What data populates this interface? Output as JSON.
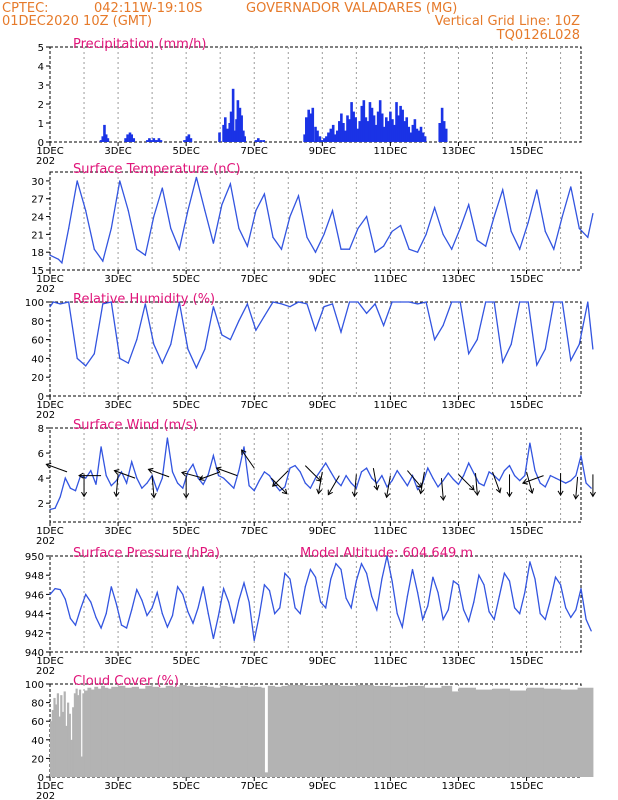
{
  "header": {
    "line1_left": "CPTEC:",
    "line1_coords": "042:11W-19:10S",
    "line1_station": "GOVERNADOR VALADARES (MG)",
    "line2_left": "01DEC2020 10Z (GMT)",
    "line2_right": "Vertical Grid Line: 10Z",
    "line3_right": "TQ0126L028",
    "colors": {
      "header": "#e67a2a",
      "title": "#e0157a",
      "line": "#3355e0",
      "bars": "#1a33e6",
      "cloud": "#b3b3b3"
    }
  },
  "x_axis": {
    "day_labels": [
      "1DEC",
      "3DEC",
      "5DEC",
      "7DEC",
      "9DEC",
      "11DEC",
      "13DEC",
      "15DEC"
    ],
    "year_stub": "202"
  },
  "chart_data": [
    {
      "type": "bar",
      "title": "Precipitation (mm/h)",
      "ylim": [
        0,
        5
      ],
      "yticks": [
        "0",
        "1",
        "2",
        "3",
        "4",
        "5"
      ],
      "x_unit": "days since 01DEC 10Z",
      "x": [
        1.5,
        1.55,
        1.6,
        1.65,
        1.7,
        2.22,
        2.28,
        2.35,
        2.4,
        2.46,
        2.86,
        2.92,
        2.98,
        3.05,
        3.09,
        3.15,
        3.2,
        3.26,
        3.95,
        4.02,
        4.08,
        4.14,
        4.98,
        5.1,
        5.15,
        5.22,
        5.28,
        5.32,
        5.38,
        5.43,
        5.48,
        5.52,
        5.58,
        5.63,
        5.68,
        5.72,
        6.05,
        6.12,
        6.2,
        6.28,
        7.48,
        7.53,
        7.6,
        7.66,
        7.72,
        7.8,
        7.86,
        7.93,
        8.0,
        8.06,
        8.12,
        8.18,
        8.25,
        8.32,
        8.38,
        8.44,
        8.5,
        8.56,
        8.62,
        8.68,
        8.74,
        8.8,
        8.86,
        8.92,
        8.98,
        9.04,
        9.1,
        9.16,
        9.22,
        9.28,
        9.34,
        9.4,
        9.46,
        9.52,
        9.58,
        9.64,
        9.7,
        9.76,
        9.82,
        9.88,
        9.94,
        10.0,
        10.06,
        10.12,
        10.18,
        10.24,
        10.3,
        10.36,
        10.42,
        10.48,
        10.54,
        10.6,
        10.66,
        10.72,
        10.78,
        10.84,
        10.9,
        10.96,
        11.02,
        11.45,
        11.52,
        11.58,
        11.64
      ],
      "values": [
        0.1,
        0.3,
        0.9,
        0.4,
        0.2,
        0.2,
        0.4,
        0.5,
        0.4,
        0.2,
        0.1,
        0.2,
        0.1,
        0.2,
        0.1,
        0.1,
        0.2,
        0.1,
        0.1,
        0.3,
        0.4,
        0.2,
        0.5,
        0.9,
        1.3,
        0.7,
        1.0,
        1.6,
        2.8,
        0.6,
        1.2,
        2.2,
        1.8,
        1.4,
        0.6,
        0.3,
        0.1,
        0.2,
        0.1,
        0.1,
        0.4,
        1.3,
        1.7,
        1.5,
        1.8,
        0.8,
        0.6,
        0.3,
        0.1,
        0.2,
        0.3,
        0.5,
        0.7,
        0.9,
        0.4,
        0.6,
        1.1,
        1.5,
        1.0,
        0.6,
        1.4,
        1.2,
        2.1,
        1.6,
        1.3,
        0.7,
        1.1,
        1.9,
        2.2,
        1.3,
        1.1,
        2.1,
        1.8,
        1.4,
        0.9,
        1.6,
        2.2,
        1.5,
        0.8,
        1.3,
        1.1,
        1.6,
        1.2,
        0.9,
        2.1,
        1.4,
        1.9,
        1.7,
        1.1,
        1.3,
        0.8,
        0.5,
        0.9,
        1.2,
        0.7,
        0.6,
        0.8,
        0.5,
        0.3,
        1.0,
        1.8,
        1.1,
        0.7
      ]
    },
    {
      "type": "line",
      "title": "Surface Temperature (nC)",
      "ylim": [
        15,
        31.5
      ],
      "yticks": [
        "15",
        "18",
        "21",
        "24",
        "27",
        "30"
      ],
      "x_unit": "days since 01DEC 10Z",
      "x": [
        0.0,
        0.25,
        0.35,
        0.55,
        0.8,
        1.05,
        1.3,
        1.55,
        1.8,
        2.05,
        2.3,
        2.55,
        2.8,
        3.05,
        3.3,
        3.55,
        3.8,
        4.05,
        4.3,
        4.55,
        4.8,
        5.05,
        5.3,
        5.55,
        5.8,
        6.05,
        6.3,
        6.55,
        6.8,
        7.05,
        7.3,
        7.55,
        7.8,
        8.05,
        8.3,
        8.55,
        8.8,
        9.05,
        9.3,
        9.55,
        9.8,
        10.05,
        10.3,
        10.55,
        10.8,
        11.05,
        11.3,
        11.55,
        11.8,
        12.05,
        12.3,
        12.55,
        12.8,
        13.05,
        13.3,
        13.55,
        13.8,
        14.05,
        14.3,
        14.55,
        14.8,
        15.05,
        15.3,
        15.55,
        15.8,
        15.95
      ],
      "values": [
        17.5,
        16.8,
        16.2,
        22.0,
        30.0,
        25.0,
        18.5,
        16.5,
        22.0,
        30.0,
        25.0,
        18.5,
        17.5,
        24.0,
        28.8,
        22.0,
        18.5,
        25.0,
        30.6,
        25.0,
        19.5,
        26.0,
        29.5,
        22.0,
        19.0,
        25.0,
        27.8,
        20.5,
        18.5,
        24.0,
        27.5,
        20.5,
        18.0,
        21.0,
        25.0,
        18.5,
        18.5,
        22.0,
        24.0,
        18.0,
        19.0,
        21.5,
        22.5,
        18.5,
        18.0,
        21.0,
        25.5,
        21.0,
        18.5,
        22.0,
        26.0,
        20.0,
        19.0,
        24.0,
        28.5,
        21.5,
        18.5,
        23.0,
        28.5,
        21.5,
        18.5,
        24.0,
        29.0,
        22.0,
        20.5,
        24.5
      ]
    },
    {
      "type": "line",
      "title": "Relative Humidity (%)",
      "ylim": [
        0,
        100
      ],
      "yticks": [
        "0",
        "20",
        "40",
        "60",
        "80",
        "100"
      ],
      "x_unit": "days since 01DEC 10Z",
      "x": [
        0.0,
        0.1,
        0.3,
        0.55,
        0.8,
        1.05,
        1.3,
        1.55,
        1.8,
        2.05,
        2.3,
        2.55,
        2.8,
        3.05,
        3.3,
        3.55,
        3.8,
        4.05,
        4.3,
        4.55,
        4.8,
        5.05,
        5.3,
        5.55,
        5.8,
        6.05,
        6.3,
        6.55,
        6.8,
        7.05,
        7.3,
        7.55,
        7.8,
        8.05,
        8.3,
        8.55,
        8.8,
        9.05,
        9.3,
        9.55,
        9.8,
        10.05,
        10.3,
        10.55,
        10.8,
        11.05,
        11.3,
        11.55,
        11.8,
        12.05,
        12.3,
        12.55,
        12.8,
        13.05,
        13.3,
        13.55,
        13.8,
        14.05,
        14.3,
        14.55,
        14.8,
        15.05,
        15.3,
        15.55,
        15.8,
        15.95
      ],
      "values": [
        95,
        100,
        98,
        100,
        40,
        32,
        45,
        98,
        100,
        40,
        35,
        60,
        98,
        55,
        35,
        55,
        100,
        50,
        30,
        50,
        95,
        65,
        60,
        80,
        98,
        70,
        85,
        100,
        98,
        95,
        100,
        98,
        70,
        95,
        98,
        68,
        100,
        100,
        88,
        98,
        75,
        100,
        100,
        100,
        98,
        100,
        60,
        75,
        100,
        100,
        45,
        60,
        100,
        100,
        36,
        55,
        100,
        100,
        33,
        50,
        100,
        100,
        38,
        55,
        100,
        50
      ]
    },
    {
      "type": "line",
      "title": "Surface Wind (m/s)",
      "ylim": [
        0.5,
        8
      ],
      "yticks": [
        "2",
        "4",
        "6",
        "8"
      ],
      "x_unit": "days since 01DEC 10Z",
      "x": [
        0.0,
        0.15,
        0.3,
        0.45,
        0.6,
        0.75,
        0.9,
        1.05,
        1.2,
        1.35,
        1.5,
        1.65,
        1.8,
        1.95,
        2.1,
        2.25,
        2.4,
        2.55,
        2.7,
        2.85,
        3.0,
        3.15,
        3.3,
        3.45,
        3.6,
        3.75,
        3.9,
        4.05,
        4.2,
        4.35,
        4.5,
        4.65,
        4.8,
        4.95,
        5.1,
        5.25,
        5.4,
        5.55,
        5.7,
        5.85,
        6.0,
        6.15,
        6.3,
        6.45,
        6.6,
        6.75,
        6.9,
        7.05,
        7.2,
        7.35,
        7.5,
        7.65,
        7.8,
        7.95,
        8.1,
        8.25,
        8.4,
        8.55,
        8.7,
        8.85,
        9.0,
        9.15,
        9.3,
        9.45,
        9.6,
        9.75,
        9.9,
        10.05,
        10.2,
        10.35,
        10.5,
        10.65,
        10.8,
        10.95,
        11.1,
        11.25,
        11.4,
        11.55,
        11.7,
        11.85,
        12.0,
        12.15,
        12.3,
        12.45,
        12.6,
        12.75,
        12.9,
        13.05,
        13.2,
        13.35,
        13.5,
        13.65,
        13.8,
        13.95,
        14.1,
        14.25,
        14.4,
        14.55,
        14.7,
        14.85,
        15.0,
        15.15,
        15.3,
        15.45,
        15.6,
        15.75,
        15.9
      ],
      "values": [
        1.5,
        1.6,
        2.5,
        4.0,
        3.2,
        3.0,
        4.2,
        4.0,
        4.6,
        3.5,
        6.5,
        4.2,
        3.4,
        3.8,
        4.5,
        3.6,
        5.3,
        4.0,
        3.2,
        3.6,
        4.2,
        3.0,
        4.0,
        7.2,
        4.5,
        3.6,
        3.2,
        4.5,
        5.1,
        4.0,
        3.5,
        4.3,
        5.8,
        4.2,
        4.0,
        3.6,
        3.2,
        4.6,
        6.5,
        3.4,
        3.0,
        3.8,
        4.5,
        4.2,
        3.5,
        3.0,
        3.3,
        4.8,
        5.0,
        4.5,
        3.6,
        3.2,
        4.0,
        4.6,
        5.2,
        4.5,
        3.8,
        3.4,
        4.2,
        3.6,
        3.2,
        4.5,
        4.8,
        4.0,
        3.6,
        4.2,
        3.3,
        3.8,
        4.6,
        4.0,
        3.4,
        4.2,
        3.1,
        3.6,
        4.8,
        4.0,
        3.3,
        3.8,
        4.4,
        3.9,
        3.5,
        4.2,
        5.2,
        4.4,
        3.6,
        3.4,
        4.5,
        4.2,
        3.8,
        4.6,
        5.0,
        4.2,
        3.8,
        4.2,
        6.8,
        4.6,
        3.6,
        3.3,
        4.2,
        4.0,
        3.8,
        3.6,
        3.8,
        4.2,
        5.8,
        3.6,
        3.2
      ]
    },
    {
      "type": "line",
      "title": "Surface Pressure (hPa)",
      "subtitle": "Model Altitude: 604.649 m",
      "ylim": [
        940,
        950
      ],
      "yticks": [
        "940",
        "942",
        "944",
        "946",
        "948",
        "950"
      ],
      "x_unit": "days since 01DEC 10Z",
      "x": [
        0.0,
        0.15,
        0.3,
        0.45,
        0.6,
        0.75,
        0.9,
        1.05,
        1.2,
        1.35,
        1.5,
        1.65,
        1.8,
        1.95,
        2.1,
        2.25,
        2.4,
        2.55,
        2.7,
        2.85,
        3.0,
        3.15,
        3.3,
        3.45,
        3.6,
        3.75,
        3.9,
        4.05,
        4.2,
        4.35,
        4.5,
        4.65,
        4.8,
        4.95,
        5.1,
        5.25,
        5.4,
        5.55,
        5.7,
        5.85,
        6.0,
        6.15,
        6.3,
        6.45,
        6.6,
        6.75,
        6.9,
        7.05,
        7.2,
        7.35,
        7.5,
        7.65,
        7.8,
        7.95,
        8.1,
        8.25,
        8.4,
        8.55,
        8.7,
        8.85,
        9.0,
        9.15,
        9.3,
        9.45,
        9.6,
        9.75,
        9.9,
        10.05,
        10.2,
        10.35,
        10.5,
        10.65,
        10.8,
        10.95,
        11.1,
        11.25,
        11.4,
        11.55,
        11.7,
        11.85,
        12.0,
        12.15,
        12.3,
        12.45,
        12.6,
        12.75,
        12.9,
        13.05,
        13.2,
        13.35,
        13.5,
        13.65,
        13.8,
        13.95,
        14.1,
        14.25,
        14.4,
        14.55,
        14.7,
        14.85,
        15.0,
        15.15,
        15.3,
        15.45,
        15.6,
        15.75,
        15.9
      ],
      "values": [
        946.0,
        946.6,
        946.5,
        945.5,
        943.5,
        942.8,
        944.5,
        946.0,
        945.2,
        943.6,
        942.5,
        944.0,
        946.8,
        945.0,
        942.8,
        942.5,
        944.4,
        946.5,
        945.4,
        943.8,
        944.6,
        946.2,
        944.0,
        942.6,
        943.8,
        946.8,
        946.0,
        944.2,
        943.0,
        944.6,
        946.8,
        944.0,
        941.4,
        943.8,
        946.6,
        945.2,
        943.0,
        945.4,
        947.2,
        945.2,
        941.2,
        943.8,
        947.0,
        946.4,
        944.0,
        944.6,
        948.2,
        947.6,
        944.6,
        944.0,
        946.8,
        948.6,
        947.8,
        945.2,
        944.6,
        947.6,
        949.2,
        948.6,
        945.6,
        944.6,
        947.4,
        949.2,
        948.2,
        945.8,
        944.4,
        947.6,
        950.0,
        947.4,
        944.0,
        942.6,
        945.8,
        948.6,
        946.2,
        943.4,
        944.8,
        947.8,
        946.2,
        943.4,
        944.4,
        947.4,
        947.0,
        944.4,
        943.2,
        945.2,
        948.0,
        947.0,
        944.2,
        943.4,
        945.8,
        948.2,
        947.4,
        944.6,
        944.0,
        946.2,
        949.4,
        947.6,
        944.0,
        943.4,
        945.4,
        947.8,
        947.0,
        944.6,
        943.6,
        944.4,
        946.6,
        943.4,
        942.2
      ]
    },
    {
      "type": "bar",
      "title": "Cloud Cover (%)",
      "ylim": [
        0,
        100
      ],
      "yticks": [
        "0",
        "20",
        "40",
        "60",
        "80",
        "100"
      ],
      "x_unit": "days since 01DEC 10Z",
      "x": [
        0.0,
        0.05,
        0.1,
        0.15,
        0.2,
        0.25,
        0.3,
        0.35,
        0.4,
        0.45,
        0.5,
        0.55,
        0.6,
        0.65,
        0.7,
        0.75,
        0.8,
        0.85,
        0.9,
        0.95,
        1.0,
        1.1,
        1.2,
        1.3,
        1.4,
        1.5,
        1.6,
        1.7,
        1.8,
        2.0,
        2.2,
        2.4,
        2.6,
        2.8,
        3.0,
        3.2,
        3.4,
        3.6,
        3.8,
        4.0,
        4.2,
        4.4,
        4.6,
        4.8,
        5.0,
        5.2,
        5.4,
        5.6,
        5.8,
        6.0,
        6.2,
        6.3,
        6.4,
        6.6,
        6.8,
        7.0,
        7.5,
        8.0,
        8.5,
        9.0,
        9.5,
        10.0,
        10.5,
        11.0,
        11.5,
        11.8,
        12.0,
        12.5,
        13.0,
        13.5,
        14.0,
        14.5,
        15.0,
        15.5,
        15.95
      ],
      "values": [
        60,
        72,
        85,
        78,
        90,
        65,
        88,
        70,
        92,
        55,
        80,
        68,
        40,
        75,
        90,
        95,
        88,
        94,
        22,
        90,
        93,
        96,
        94,
        97,
        95,
        98,
        96,
        95,
        97,
        98,
        96,
        97,
        95,
        98,
        97,
        96,
        98,
        97,
        99,
        98,
        97,
        98,
        97,
        96,
        98,
        97,
        96,
        98,
        97,
        97,
        96,
        5,
        98,
        97,
        98,
        99,
        98,
        99,
        98,
        99,
        98,
        97,
        98,
        96,
        98,
        92,
        96,
        94,
        95,
        93,
        96,
        95,
        94,
        96,
        97
      ]
    },
    {
      "type": "vector",
      "title": "Surface Wind direction arrows",
      "x_unit": "days since 01DEC 10Z",
      "x": [
        0.5,
        1.0,
        1.5,
        2.0,
        2.5,
        3.0,
        3.5,
        4.0,
        4.5,
        5.0,
        5.5,
        6.0,
        6.5,
        7.0,
        7.5,
        8.0,
        8.5,
        9.0,
        9.5,
        10.0,
        10.5,
        11.0,
        11.5,
        12.0,
        12.5,
        13.0,
        13.5,
        14.0,
        14.5,
        15.0,
        15.5,
        15.95
      ],
      "wind_speed": [
        4.5,
        4.3,
        4.2,
        4.3,
        4.0,
        4.2,
        4.1,
        4.2,
        4.0,
        4.5,
        4.2,
        4.8,
        4.0,
        4.6,
        5.0,
        4.5,
        4.2,
        4.3,
        4.8,
        4.2,
        4.6,
        4.5,
        4.0,
        4.3,
        4.4,
        4.5,
        4.3,
        4.5,
        4.2,
        4.4,
        4.1,
        4.3
      ],
      "direction_deg": [
        200,
        90,
        180,
        95,
        200,
        85,
        200,
        90,
        195,
        160,
        200,
        235,
        45,
        135,
        45,
        100,
        120,
        95,
        80,
        100,
        50,
        100,
        85,
        45,
        85,
        70,
        90,
        75,
        160,
        90,
        95,
        90
      ]
    }
  ]
}
